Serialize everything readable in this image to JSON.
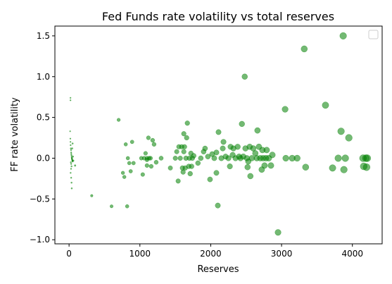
{
  "chart_data": {
    "type": "scatter",
    "title": "Fed Funds rate volatility vs total reserves",
    "xlabel": "Reserves",
    "ylabel": "FF rate volatility",
    "xlim": [
      -200,
      4420
    ],
    "ylim": [
      -1.05,
      1.62
    ],
    "xticks": [
      0,
      1000,
      2000,
      3000,
      4000
    ],
    "yticks": [
      -1.0,
      -0.5,
      0.0,
      0.5,
      1.0,
      1.5
    ],
    "xtick_labels": [
      "0",
      "1000",
      "2000",
      "3000",
      "4000"
    ],
    "ytick_labels": [
      "−1.0",
      "−0.5",
      "0.0",
      "0.5",
      "1.0",
      "1.5"
    ],
    "grid": false,
    "legend": "top-right",
    "marker_color": "#008000",
    "marker_alpha": 0.55,
    "marker_size_note": "marker size grows with reserves",
    "points": [
      [
        20,
        0.74
      ],
      [
        20,
        0.71
      ],
      [
        15,
        0.33
      ],
      [
        18,
        0.24
      ],
      [
        20,
        0.2
      ],
      [
        22,
        0.16
      ],
      [
        25,
        0.12
      ],
      [
        28,
        0.1
      ],
      [
        30,
        0.07
      ],
      [
        32,
        0.05
      ],
      [
        35,
        0.03
      ],
      [
        38,
        0.01
      ],
      [
        40,
        0.0
      ],
      [
        42,
        -0.01
      ],
      [
        45,
        -0.02
      ],
      [
        48,
        -0.03
      ],
      [
        50,
        -0.04
      ],
      [
        25,
        -0.05
      ],
      [
        30,
        -0.07
      ],
      [
        35,
        -0.1
      ],
      [
        28,
        -0.13
      ],
      [
        22,
        -0.18
      ],
      [
        30,
        -0.24
      ],
      [
        35,
        -0.3
      ],
      [
        38,
        -0.37
      ],
      [
        55,
        0.02
      ],
      [
        60,
        -0.03
      ],
      [
        45,
        0.12
      ],
      [
        50,
        0.18
      ],
      [
        85,
        -0.09
      ],
      [
        320,
        -0.46
      ],
      [
        600,
        -0.59
      ],
      [
        700,
        0.47
      ],
      [
        760,
        -0.18
      ],
      [
        780,
        -0.23
      ],
      [
        800,
        0.17
      ],
      [
        820,
        -0.59
      ],
      [
        830,
        0.0
      ],
      [
        850,
        -0.06
      ],
      [
        870,
        -0.16
      ],
      [
        890,
        0.2
      ],
      [
        910,
        -0.06
      ],
      [
        1020,
        0.0
      ],
      [
        1040,
        -0.2
      ],
      [
        1060,
        0.0
      ],
      [
        1080,
        0.06
      ],
      [
        1100,
        -0.02
      ],
      [
        1100,
        0.0
      ],
      [
        1100,
        -0.09
      ],
      [
        1120,
        0.25
      ],
      [
        1130,
        0.0
      ],
      [
        1150,
        0.0
      ],
      [
        1160,
        -0.1
      ],
      [
        1180,
        0.22
      ],
      [
        1200,
        0.17
      ],
      [
        1230,
        -0.05
      ],
      [
        1300,
        0.0
      ],
      [
        1430,
        -0.12
      ],
      [
        1500,
        0.0
      ],
      [
        1520,
        0.08
      ],
      [
        1540,
        -0.28
      ],
      [
        1550,
        0.14
      ],
      [
        1570,
        0.0
      ],
      [
        1590,
        0.14
      ],
      [
        1600,
        -0.12
      ],
      [
        1610,
        -0.17
      ],
      [
        1620,
        0.08
      ],
      [
        1620,
        0.3
      ],
      [
        1630,
        0.14
      ],
      [
        1640,
        -0.12
      ],
      [
        1650,
        0.0
      ],
      [
        1660,
        0.25
      ],
      [
        1670,
        0.43
      ],
      [
        1690,
        -0.1
      ],
      [
        1700,
        0.0
      ],
      [
        1710,
        -0.19
      ],
      [
        1720,
        0.06
      ],
      [
        1730,
        -0.1
      ],
      [
        1740,
        0.0
      ],
      [
        1760,
        0.03
      ],
      [
        1820,
        -0.06
      ],
      [
        1860,
        0.0
      ],
      [
        1900,
        0.08
      ],
      [
        1920,
        0.12
      ],
      [
        1960,
        0.02
      ],
      [
        1990,
        -0.26
      ],
      [
        2020,
        0.05
      ],
      [
        2050,
        0.0
      ],
      [
        2080,
        -0.18
      ],
      [
        2080,
        0.07
      ],
      [
        2100,
        -0.58
      ],
      [
        2110,
        0.32
      ],
      [
        2150,
        0.0
      ],
      [
        2170,
        0.12
      ],
      [
        2180,
        0.2
      ],
      [
        2210,
        0.02
      ],
      [
        2250,
        0.0
      ],
      [
        2270,
        -0.1
      ],
      [
        2280,
        0.14
      ],
      [
        2310,
        0.04
      ],
      [
        2320,
        0.12
      ],
      [
        2350,
        0.0
      ],
      [
        2380,
        0.14
      ],
      [
        2400,
        0.02
      ],
      [
        2420,
        0.0
      ],
      [
        2440,
        0.42
      ],
      [
        2460,
        0.02
      ],
      [
        2480,
        1.0
      ],
      [
        2490,
        0.12
      ],
      [
        2510,
        0.0
      ],
      [
        2520,
        -0.11
      ],
      [
        2530,
        -0.04
      ],
      [
        2550,
        0.14
      ],
      [
        2560,
        -0.22
      ],
      [
        2580,
        0.0
      ],
      [
        2600,
        0.12
      ],
      [
        2630,
        0.06
      ],
      [
        2650,
        0.0
      ],
      [
        2660,
        0.34
      ],
      [
        2680,
        0.14
      ],
      [
        2700,
        0.0
      ],
      [
        2720,
        -0.14
      ],
      [
        2730,
        0.1
      ],
      [
        2740,
        0.0
      ],
      [
        2760,
        -0.09
      ],
      [
        2780,
        0.0
      ],
      [
        2790,
        0.1
      ],
      [
        2820,
        0.0
      ],
      [
        2850,
        -0.09
      ],
      [
        2870,
        0.04
      ],
      [
        2950,
        -0.91
      ],
      [
        3050,
        0.6
      ],
      [
        3060,
        0.0
      ],
      [
        3150,
        0.0
      ],
      [
        3220,
        0.0
      ],
      [
        3320,
        1.34
      ],
      [
        3340,
        -0.11
      ],
      [
        3620,
        0.65
      ],
      [
        3720,
        -0.12
      ],
      [
        3800,
        0.0
      ],
      [
        3840,
        0.33
      ],
      [
        3870,
        1.5
      ],
      [
        3880,
        -0.14
      ],
      [
        3900,
        0.0
      ],
      [
        3950,
        0.25
      ],
      [
        4150,
        0.0
      ],
      [
        4160,
        -0.1
      ],
      [
        4190,
        0.0
      ],
      [
        4200,
        -0.11
      ],
      [
        4210,
        0.0
      ]
    ]
  }
}
